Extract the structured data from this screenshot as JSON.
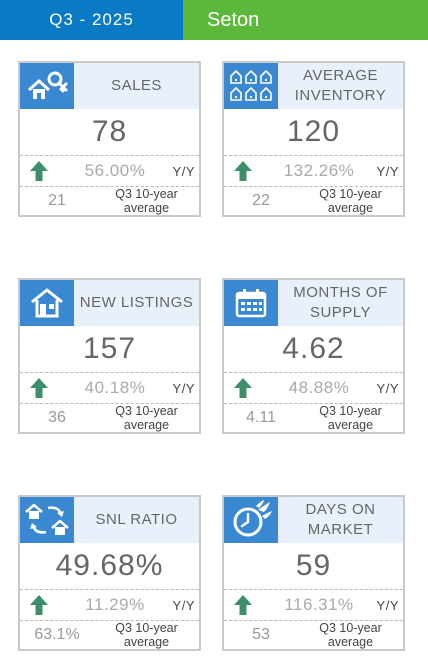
{
  "header": {
    "period": "Q3 - 2025",
    "area": "Seton"
  },
  "cards": [
    {
      "title": "SALES",
      "value": "78",
      "change": "56.00%",
      "yy": "Y/Y",
      "avg_value": "21",
      "avg_label": "Q3 10-year average",
      "icon": "house-key-icon"
    },
    {
      "title": "AVERAGE INVENTORY",
      "value": "120",
      "change": "132.26%",
      "yy": "Y/Y",
      "avg_value": "22",
      "avg_label": "Q3 10-year average",
      "icon": "houses-grid-icon"
    },
    {
      "title": "NEW LISTINGS",
      "value": "157",
      "change": "40.18%",
      "yy": "Y/Y",
      "avg_value": "36",
      "avg_label": "Q3 10-year average",
      "icon": "house-icon"
    },
    {
      "title": "MONTHS OF SUPPLY",
      "value": "4.62",
      "change": "48.88%",
      "yy": "Y/Y",
      "avg_value": "4.11",
      "avg_label": "Q3 10-year average",
      "icon": "calendar-icon"
    },
    {
      "title": "SNL RATIO",
      "value": "49.68%",
      "change": "11.29%",
      "yy": "Y/Y",
      "avg_value": "63.1%",
      "avg_label": "Q3 10-year average",
      "icon": "house-exchange-icon"
    },
    {
      "title": "DAYS ON MARKET",
      "value": "59",
      "change": "116.31%",
      "yy": "Y/Y",
      "avg_value": "53",
      "avg_label": "Q3 10-year average",
      "icon": "fast-clock-icon"
    }
  ],
  "colors": {
    "period_bar": "#0b7ac4",
    "area_bar": "#5cb83a",
    "icon_bg": "#3a87d2",
    "header_bg": "#e8f1fb",
    "arrow": "#3d8f6a"
  }
}
